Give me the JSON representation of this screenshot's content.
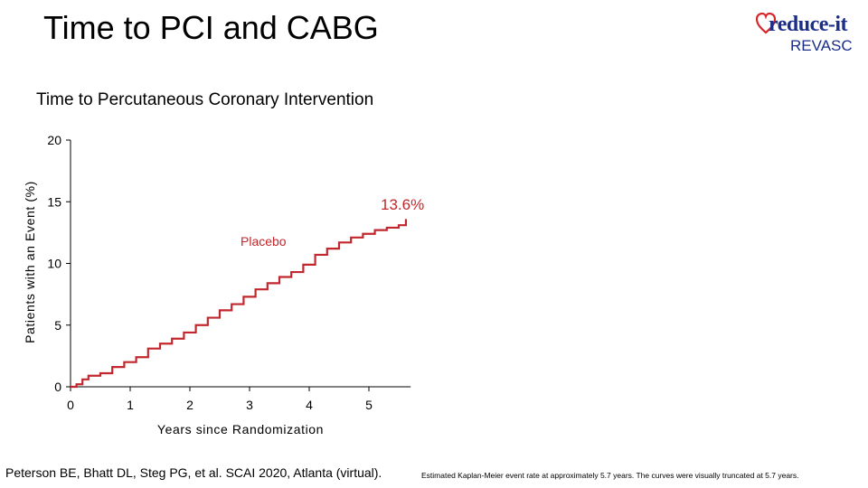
{
  "slide": {
    "title": "Time to PCI and CABG",
    "logo_line1": "reduce-it",
    "logo_line2": "REVASC",
    "citation": "Peterson BE, Bhatt DL, Steg PG, et al. SCAI 2020, Atlanta (virtual).",
    "footnote": "Estimated Kaplan-Meier event rate at approximately 5.7 years. The curves were visually truncated at 5.7 years.",
    "colors": {
      "curve": "#c1272d",
      "logo": "#1a2e8a",
      "heart": "#d7262b"
    }
  },
  "chart_data": {
    "type": "line",
    "title": "Time to Percutaneous Coronary Intervention",
    "xlabel": "Years since Randomization",
    "ylabel": "Patients with an Event (%)",
    "xlim": [
      0,
      5.7
    ],
    "ylim": [
      0,
      20
    ],
    "xticks": [
      "0",
      "1",
      "2",
      "3",
      "4",
      "5"
    ],
    "yticks": [
      "0",
      "5",
      "10",
      "15",
      "20"
    ],
    "grid": false,
    "series": [
      {
        "name": "Placebo",
        "color": "#c1272d",
        "x": [
          0,
          0.1,
          0.2,
          0.3,
          0.5,
          0.7,
          0.9,
          1.1,
          1.3,
          1.5,
          1.7,
          1.9,
          2.1,
          2.3,
          2.5,
          2.7,
          2.9,
          3.1,
          3.3,
          3.5,
          3.7,
          3.9,
          4.1,
          4.3,
          4.5,
          4.7,
          4.9,
          5.1,
          5.3,
          5.5,
          5.62
        ],
        "values": [
          0,
          0.2,
          0.6,
          0.9,
          1.1,
          1.6,
          2.0,
          2.4,
          3.1,
          3.5,
          3.9,
          4.4,
          5.0,
          5.6,
          6.2,
          6.7,
          7.3,
          7.9,
          8.4,
          8.9,
          9.3,
          9.9,
          10.7,
          11.2,
          11.7,
          12.1,
          12.4,
          12.7,
          12.9,
          13.1,
          13.6
        ]
      }
    ],
    "annotations": [
      {
        "text": "13.6%"
      },
      {
        "text": "Placebo"
      }
    ]
  }
}
